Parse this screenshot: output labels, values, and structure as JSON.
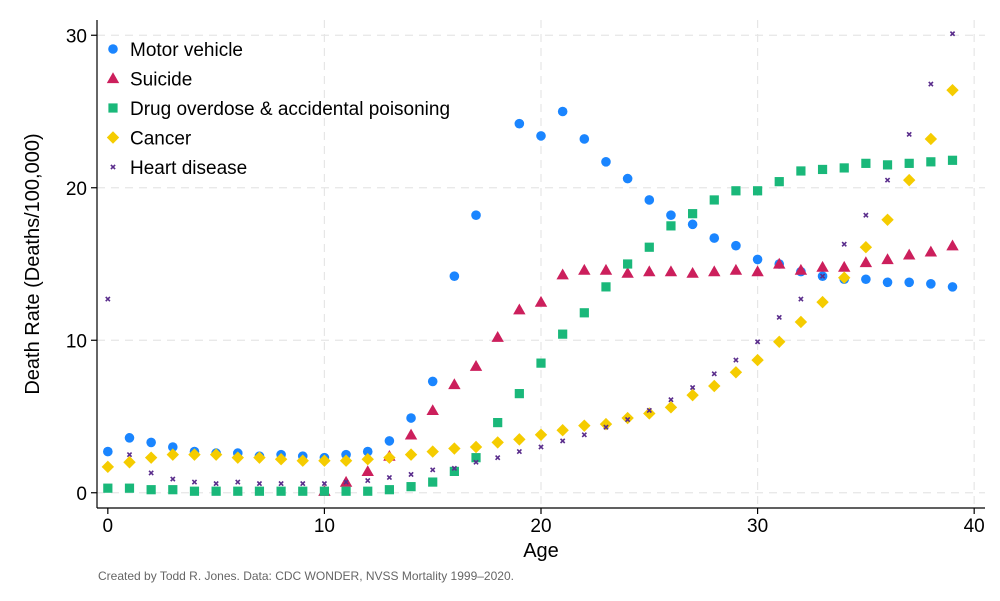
{
  "chart_data": {
    "type": "scatter",
    "title": "",
    "xlabel": "Age",
    "ylabel": "Death Rate (Deaths/100,000)",
    "xlim": [
      -0.5,
      40.5
    ],
    "ylim": [
      -1,
      31
    ],
    "xticks": [
      0,
      10,
      20,
      30,
      40
    ],
    "yticks": [
      0,
      10,
      20,
      30
    ],
    "grid": true,
    "legend_position": "top-left",
    "caption": "Created by Todd R. Jones. Data: CDC WONDER, NVSS Mortality 1999–2020.",
    "x": [
      0,
      1,
      2,
      3,
      4,
      5,
      6,
      7,
      8,
      9,
      10,
      11,
      12,
      13,
      14,
      15,
      16,
      17,
      18,
      19,
      20,
      21,
      22,
      23,
      24,
      25,
      26,
      27,
      28,
      29,
      30,
      31,
      32,
      33,
      34,
      35,
      36,
      37,
      38,
      39
    ],
    "series": [
      {
        "name": "Motor vehicle",
        "color": "#1a85ff",
        "marker": "circle",
        "values": [
          2.7,
          3.6,
          3.3,
          3.0,
          2.7,
          2.6,
          2.6,
          2.4,
          2.5,
          2.4,
          2.3,
          2.5,
          2.7,
          3.4,
          4.9,
          7.3,
          14.2,
          18.2,
          null,
          24.2,
          23.4,
          25.0,
          23.2,
          21.7,
          20.6,
          19.2,
          18.2,
          17.6,
          16.7,
          16.2,
          15.3,
          15.0,
          14.5,
          14.2,
          14.0,
          14.0,
          13.8,
          13.8,
          13.7,
          13.5
        ]
      },
      {
        "name": "Suicide",
        "color": "#cc1f5c",
        "marker": "triangle",
        "values": [
          null,
          null,
          null,
          null,
          null,
          null,
          null,
          null,
          null,
          null,
          0.1,
          0.7,
          1.4,
          2.4,
          3.8,
          5.4,
          7.1,
          8.3,
          10.2,
          12.0,
          12.5,
          14.3,
          14.6,
          14.6,
          14.4,
          14.5,
          14.5,
          14.4,
          14.5,
          14.6,
          14.5,
          15.0,
          14.6,
          14.8,
          14.8,
          15.1,
          15.3,
          15.6,
          15.8,
          16.2
        ]
      },
      {
        "name": "Drug overdose & accidental poisoning",
        "color": "#1ab87a",
        "marker": "square",
        "values": [
          0.3,
          0.3,
          0.2,
          0.2,
          0.1,
          0.1,
          0.1,
          0.1,
          0.1,
          0.1,
          0.1,
          0.1,
          0.1,
          0.2,
          0.4,
          0.7,
          1.4,
          2.3,
          4.6,
          6.5,
          8.5,
          10.4,
          11.8,
          13.5,
          15.0,
          16.1,
          17.5,
          18.3,
          19.2,
          19.8,
          19.8,
          20.4,
          21.1,
          21.2,
          21.3,
          21.6,
          21.5,
          21.6,
          21.7,
          21.8
        ]
      },
      {
        "name": "Cancer",
        "color": "#f5cc00",
        "marker": "diamond",
        "values": [
          1.7,
          2.0,
          2.3,
          2.5,
          2.5,
          2.5,
          2.3,
          2.3,
          2.2,
          2.1,
          2.1,
          2.1,
          2.2,
          2.3,
          2.5,
          2.7,
          2.9,
          3.0,
          3.3,
          3.5,
          3.8,
          4.1,
          4.4,
          4.5,
          4.9,
          5.2,
          5.6,
          6.4,
          7.0,
          7.9,
          8.7,
          9.9,
          11.2,
          12.5,
          14.1,
          16.1,
          17.9,
          20.5,
          23.2,
          26.4
        ]
      },
      {
        "name": "Heart disease",
        "color": "#5a2d8c",
        "marker": "x",
        "values": [
          12.7,
          2.5,
          1.3,
          0.9,
          0.7,
          0.6,
          0.7,
          0.6,
          0.6,
          0.6,
          0.6,
          0.7,
          0.8,
          1.0,
          1.2,
          1.5,
          1.6,
          2.0,
          2.3,
          2.7,
          3.0,
          3.4,
          3.8,
          4.3,
          4.8,
          5.4,
          6.1,
          6.9,
          7.8,
          8.7,
          9.9,
          11.5,
          12.7,
          14.2,
          16.3,
          18.2,
          20.5,
          23.5,
          26.8,
          30.1
        ]
      }
    ]
  }
}
